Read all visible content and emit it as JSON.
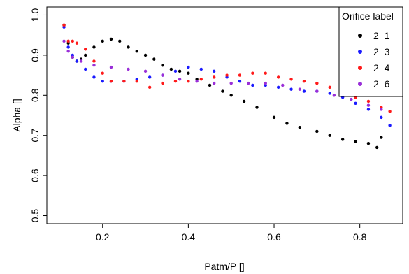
{
  "chart_data": {
    "type": "scatter",
    "xlabel": "Patm/P []",
    "ylabel": "Alpha []",
    "xlim": [
      0.07,
      0.9
    ],
    "ylim": [
      0.48,
      1.02
    ],
    "xticks": [
      0.2,
      0.4,
      0.6,
      0.8
    ],
    "yticks": [
      0.5,
      0.6,
      0.7,
      0.8,
      0.9,
      1.0
    ],
    "xtick_labels": [
      "0.2",
      "0.4",
      "0.6",
      "0.8"
    ],
    "ytick_labels": [
      "0.5",
      "0.6",
      "0.7",
      "0.8",
      "0.9",
      "1.0"
    ],
    "grid": false,
    "legend": {
      "title": "Orifice label",
      "placement": "top-right",
      "entries": [
        "2_1",
        "2_3",
        "2_4",
        "2_6"
      ]
    },
    "series": [
      {
        "name": "2_1",
        "color": "#000000",
        "x": [
          0.11,
          0.12,
          0.13,
          0.14,
          0.15,
          0.16,
          0.18,
          0.2,
          0.22,
          0.24,
          0.26,
          0.28,
          0.3,
          0.32,
          0.34,
          0.36,
          0.38,
          0.4,
          0.42,
          0.45,
          0.48,
          0.5,
          0.53,
          0.56,
          0.6,
          0.63,
          0.66,
          0.7,
          0.73,
          0.76,
          0.79,
          0.82,
          0.84,
          0.85
        ],
        "y": [
          0.975,
          0.93,
          0.895,
          0.885,
          0.89,
          0.9,
          0.92,
          0.935,
          0.94,
          0.935,
          0.92,
          0.91,
          0.9,
          0.89,
          0.875,
          0.865,
          0.86,
          0.855,
          0.84,
          0.825,
          0.81,
          0.8,
          0.785,
          0.77,
          0.745,
          0.73,
          0.72,
          0.71,
          0.7,
          0.69,
          0.685,
          0.68,
          0.67,
          0.695
        ]
      },
      {
        "name": "2_3",
        "color": "#1a1aff",
        "x": [
          0.11,
          0.12,
          0.13,
          0.14,
          0.16,
          0.18,
          0.2,
          0.22,
          0.25,
          0.28,
          0.31,
          0.34,
          0.37,
          0.4,
          0.43,
          0.46,
          0.49,
          0.52,
          0.55,
          0.58,
          0.61,
          0.64,
          0.67,
          0.7,
          0.73,
          0.76,
          0.79,
          0.82,
          0.85,
          0.87
        ],
        "y": [
          0.97,
          0.92,
          0.9,
          0.885,
          0.865,
          0.845,
          0.835,
          0.835,
          0.835,
          0.84,
          0.845,
          0.85,
          0.86,
          0.87,
          0.865,
          0.86,
          0.845,
          0.835,
          0.825,
          0.825,
          0.82,
          0.815,
          0.81,
          0.81,
          0.805,
          0.795,
          0.78,
          0.765,
          0.745,
          0.725
        ]
      },
      {
        "name": "2_4",
        "color": "#ff1a1a",
        "x": [
          0.11,
          0.12,
          0.13,
          0.14,
          0.16,
          0.18,
          0.2,
          0.22,
          0.25,
          0.28,
          0.31,
          0.34,
          0.37,
          0.4,
          0.43,
          0.46,
          0.49,
          0.52,
          0.55,
          0.58,
          0.61,
          0.64,
          0.67,
          0.7,
          0.73,
          0.76,
          0.79,
          0.82,
          0.85,
          0.87
        ],
        "y": [
          0.975,
          0.935,
          0.935,
          0.93,
          0.915,
          0.885,
          0.855,
          0.835,
          0.835,
          0.835,
          0.82,
          0.83,
          0.835,
          0.835,
          0.84,
          0.845,
          0.85,
          0.85,
          0.855,
          0.855,
          0.845,
          0.84,
          0.835,
          0.83,
          0.82,
          0.81,
          0.795,
          0.785,
          0.77,
          0.76
        ]
      },
      {
        "name": "2_6",
        "color": "#9a2fd8",
        "x": [
          0.11,
          0.12,
          0.13,
          0.15,
          0.18,
          0.22,
          0.26,
          0.3,
          0.34,
          0.38,
          0.42,
          0.46,
          0.5,
          0.54,
          0.58,
          0.62,
          0.66,
          0.7,
          0.74,
          0.78,
          0.82,
          0.85
        ],
        "y": [
          0.935,
          0.91,
          0.895,
          0.885,
          0.875,
          0.87,
          0.865,
          0.86,
          0.85,
          0.84,
          0.835,
          0.83,
          0.83,
          0.83,
          0.83,
          0.825,
          0.815,
          0.81,
          0.8,
          0.79,
          0.775,
          0.765
        ]
      }
    ]
  }
}
